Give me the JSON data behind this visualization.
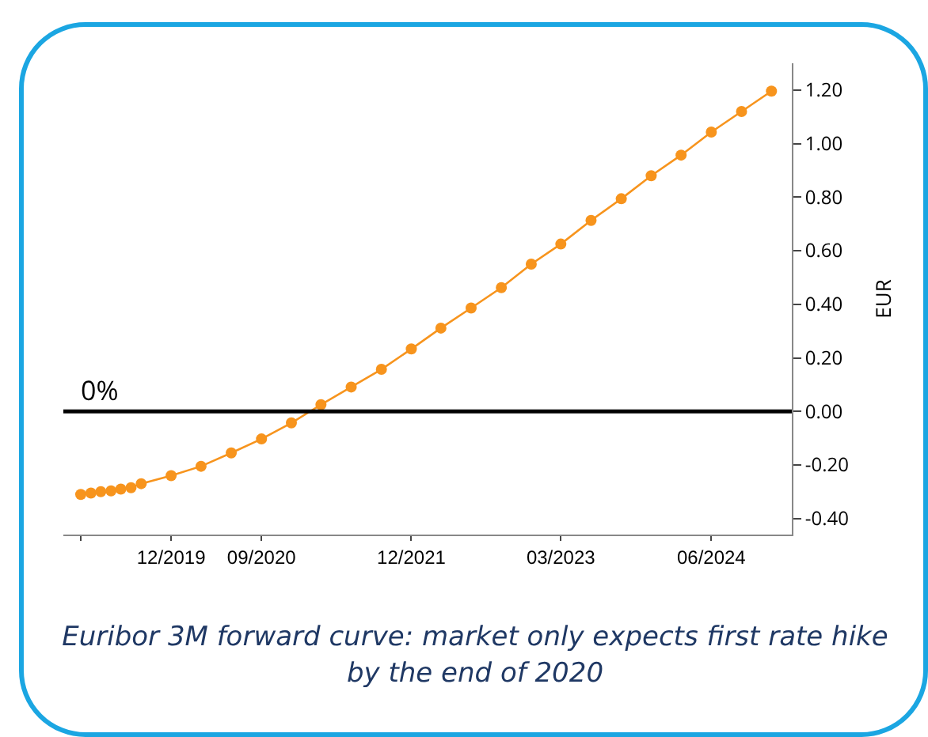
{
  "chart_data": {
    "type": "line",
    "ylabel": "EUR",
    "x": [
      "2019-03",
      "2019-04",
      "2019-05",
      "2019-06",
      "2019-07",
      "2019-08",
      "2019-09",
      "2019-12",
      "2020-03",
      "2020-06",
      "2020-09",
      "2020-12",
      "2021-03",
      "2021-06",
      "2021-09",
      "2021-12",
      "2022-03",
      "2022-06",
      "2022-09",
      "2022-12",
      "2023-03",
      "2023-06",
      "2023-09",
      "2023-12",
      "2024-03",
      "2024-06",
      "2024-09",
      "2024-12"
    ],
    "series": [
      {
        "color": "#f7941d",
        "values": [
          -0.31,
          -0.305,
          -0.3,
          -0.297,
          -0.29,
          -0.285,
          -0.27,
          -0.24,
          -0.205,
          -0.155,
          -0.103,
          -0.043,
          0.025,
          0.091,
          0.157,
          0.233,
          0.311,
          0.386,
          0.462,
          0.55,
          0.625,
          0.713,
          0.794,
          0.88,
          0.957,
          1.043,
          1.12,
          1.196
        ]
      }
    ],
    "xlim": [
      "2019-01-07",
      "2025-02-01"
    ],
    "xticks": [
      {
        "value": "2019-03",
        "label": null
      },
      {
        "value": "2019-12",
        "label": "12/2019"
      },
      {
        "value": "2020-09",
        "label": "09/2020"
      },
      {
        "value": "2021-12",
        "label": "12/2021"
      },
      {
        "value": "2023-03",
        "label": "03/2023"
      },
      {
        "value": "2024-06",
        "label": "06/2024"
      }
    ],
    "ylim": [
      -0.46,
      1.3
    ],
    "yticks": [
      {
        "value": -0.4,
        "label": "-0.40"
      },
      {
        "value": -0.2,
        "label": "-0.20"
      },
      {
        "value": 0,
        "label": "0.00"
      },
      {
        "value": 0.2,
        "label": "0.20"
      },
      {
        "value": 0.4,
        "label": "0.40"
      },
      {
        "value": 0.6,
        "label": "0.60"
      },
      {
        "value": 0.8,
        "label": "0.80"
      },
      {
        "value": 1,
        "label": "1.00"
      },
      {
        "value": 1.2,
        "label": "1.20"
      }
    ],
    "ref_lines": [
      {
        "axis": "y",
        "value": 0,
        "label": "0%",
        "color": "#000000"
      }
    ],
    "marker": "circle",
    "line_style": "solid",
    "grid": false,
    "annotations": [
      "Euribor 3M forward curve: market only expects first rate hike by the end of 2020"
    ]
  }
}
